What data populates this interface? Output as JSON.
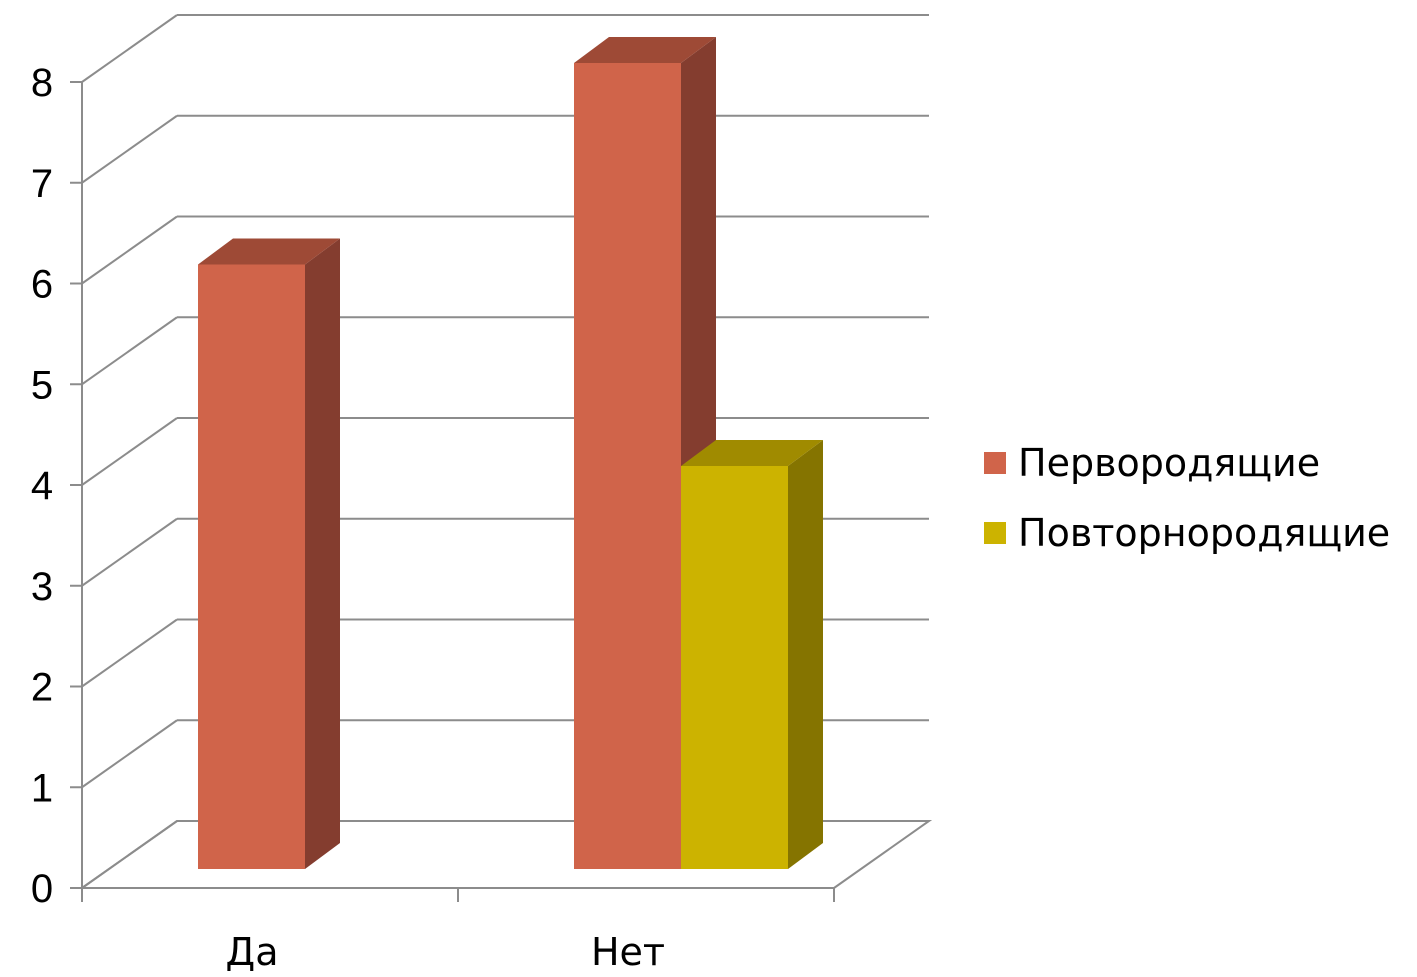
{
  "chart_data": {
    "type": "bar",
    "style": "3d-clustered-column",
    "categories": [
      "Да",
      "Нет"
    ],
    "series": [
      {
        "name": "Первородящие",
        "values": [
          6,
          8
        ],
        "color": "#d0644a",
        "side_color": "#843d2f",
        "top_color": "#9e4a36"
      },
      {
        "name": "Повторнородящие",
        "values": [
          0,
          4
        ],
        "color": "#ccb300",
        "side_color": "#857400",
        "top_color": "#a08b00"
      }
    ],
    "ylim": [
      0,
      8
    ],
    "yticks": [
      "0",
      "1",
      "2",
      "3",
      "4",
      "5",
      "6",
      "7",
      "8"
    ],
    "grid": true,
    "legend_position": "right",
    "title": "",
    "xlabel": "",
    "ylabel": ""
  }
}
